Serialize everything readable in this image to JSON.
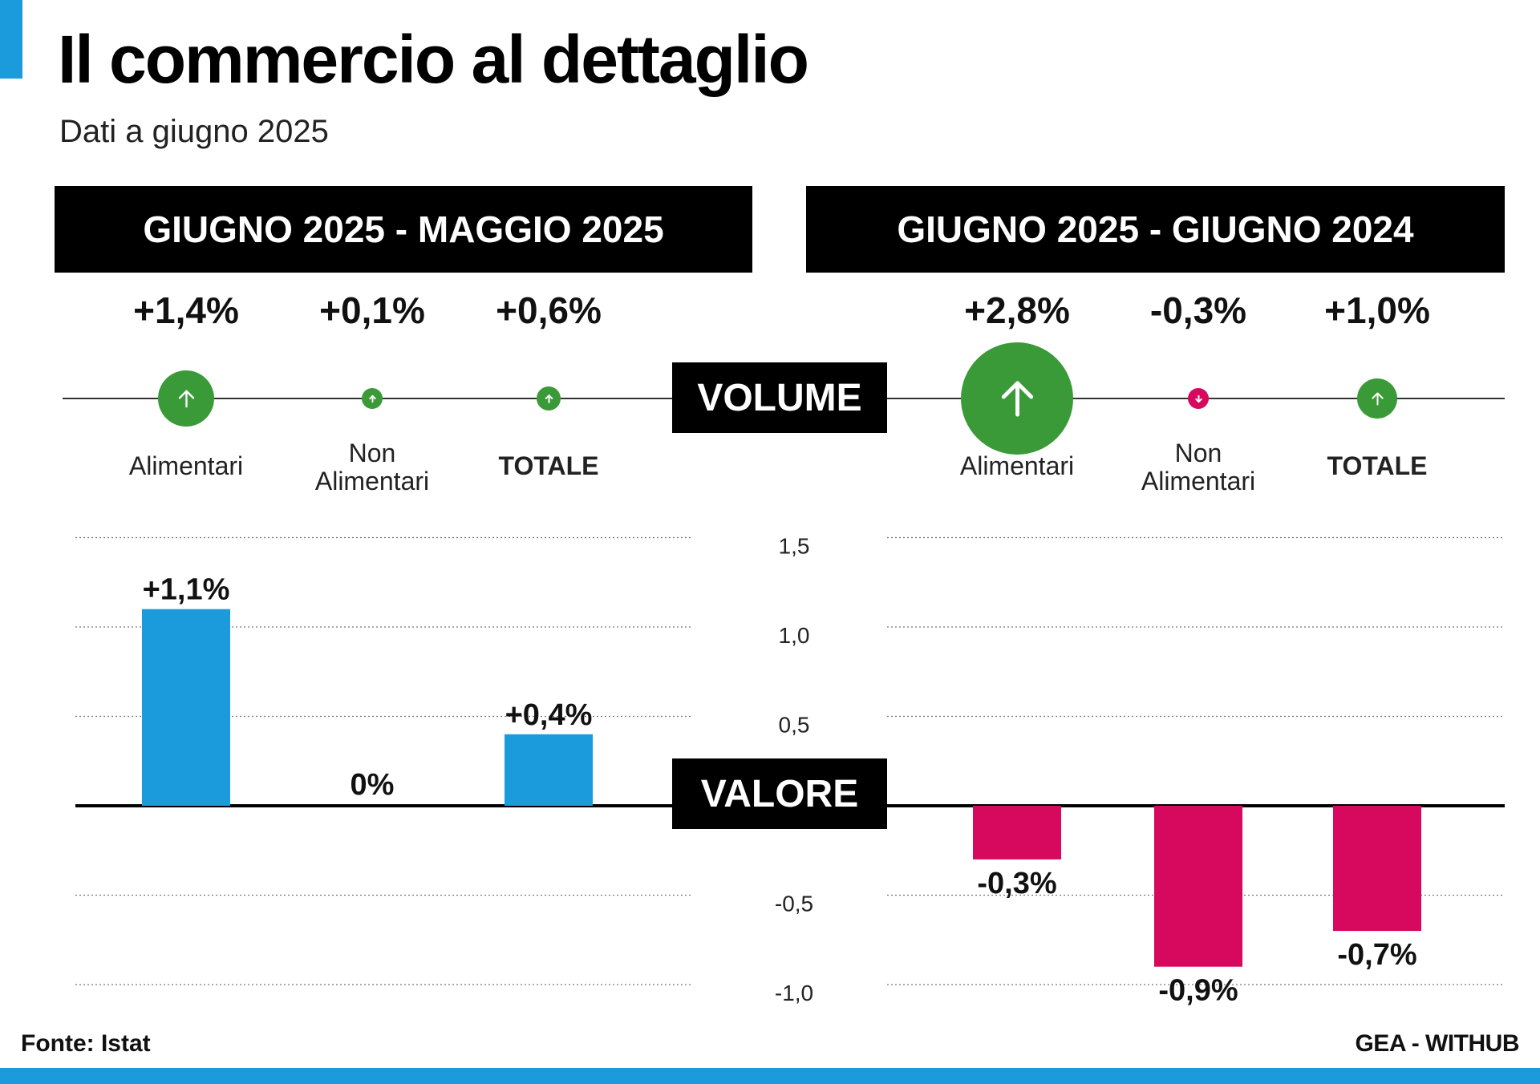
{
  "header": {
    "title": "Il commercio al dettaglio",
    "subtitle": "Dati a giugno 2025"
  },
  "periods": {
    "left": "GIUGNO 2025 - MAGGIO 2025",
    "right": "GIUGNO 2025 - GIUGNO 2024"
  },
  "section_labels": {
    "volume": "VOLUME",
    "valore": "VALORE"
  },
  "volume": {
    "left": [
      {
        "label_line1": "Alimentari",
        "label_line2": "",
        "value": 1.4,
        "display": "+1,4%",
        "direction": "up",
        "bold": false
      },
      {
        "label_line1": "Non",
        "label_line2": "Alimentari",
        "value": 0.1,
        "display": "+0,1%",
        "direction": "up",
        "bold": false
      },
      {
        "label_line1": "TOTALE",
        "label_line2": "",
        "value": 0.6,
        "display": "+0,6%",
        "direction": "up",
        "bold": true
      }
    ],
    "right": [
      {
        "label_line1": "Alimentari",
        "label_line2": "",
        "value": 2.8,
        "display": "+2,8%",
        "direction": "up",
        "bold": false
      },
      {
        "label_line1": "Non",
        "label_line2": "Alimentari",
        "value": -0.3,
        "display": "-0,3%",
        "direction": "down",
        "bold": false
      },
      {
        "label_line1": "TOTALE",
        "label_line2": "",
        "value": 1.0,
        "display": "+1,0%",
        "direction": "up",
        "bold": true
      }
    ]
  },
  "chart_data": {
    "type": "bar",
    "title": "",
    "ylim": [
      -1.0,
      1.5
    ],
    "yticks": [
      1.5,
      1.0,
      0.5,
      -0.5,
      -1.0
    ],
    "ytick_labels": [
      "1,5",
      "1,0",
      "0,5",
      "-0,5",
      "-1,0"
    ],
    "grid": true,
    "series": [
      {
        "categories": [
          "Alimentari",
          "Non Alimentari",
          "TOTALE"
        ],
        "values": [
          1.1,
          0,
          0.4
        ],
        "labels": [
          "+1,1%",
          "0%",
          "+0,4%"
        ]
      },
      {
        "categories": [
          "Alimentari",
          "Non Alimentari",
          "TOTALE"
        ],
        "values": [
          -0.3,
          -0.9,
          -0.7
        ],
        "labels": [
          "-0,3%",
          "-0,9%",
          "-0,7%"
        ]
      }
    ]
  },
  "colors": {
    "accent_blue": "#1b9bdb",
    "positive_green": "#3a9a38",
    "negative_magenta": "#d6095e",
    "bar_positive": "#1b9bdb",
    "bar_negative": "#d6095e",
    "header_bg": "#000000"
  },
  "footer": {
    "source": "Fonte: Istat",
    "credit": "GEA - WITHUB"
  }
}
